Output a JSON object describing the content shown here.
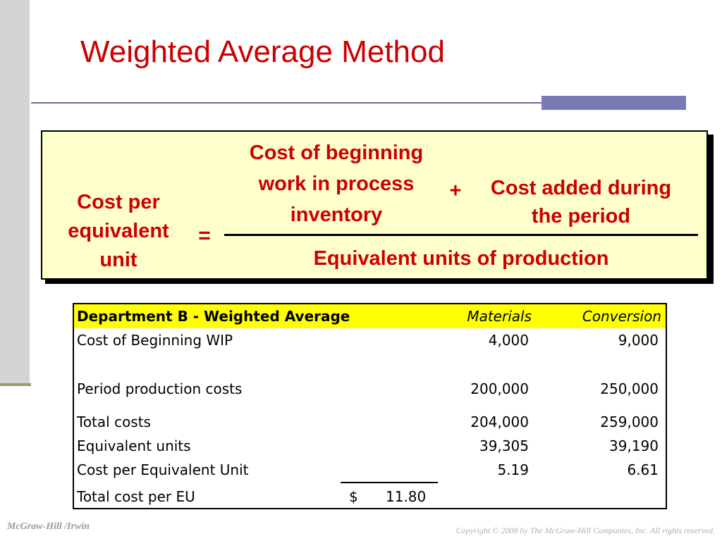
{
  "slide": {
    "title": "Weighted Average Method"
  },
  "formula": {
    "lhs": [
      "Cost per",
      "equivalent",
      "unit"
    ],
    "equals": "=",
    "beginning_inventory": [
      "Cost of beginning",
      "work in process",
      "inventory"
    ],
    "plus": "+",
    "added": [
      "Cost added during",
      "the period"
    ],
    "denominator": "Equivalent units of production",
    "box_color": "#ffffcc",
    "text_color": "#cc0000"
  },
  "table": {
    "header": {
      "label": "Department B - Weighted Average",
      "materials": "Materials",
      "conversion": "Conversion",
      "fill_color": "#ffff00"
    },
    "rows": [
      {
        "label": "Cost of Beginning WIP",
        "materials": "4,000",
        "conversion": "9,000"
      },
      {
        "label": "Period production costs",
        "materials": "200,000",
        "conversion": "250,000"
      },
      {
        "label": "Total costs",
        "materials": "204,000",
        "conversion": "259,000"
      },
      {
        "label": "Equivalent units",
        "materials": "39,305",
        "conversion": "39,190"
      },
      {
        "label": "Cost per Equivalent Unit",
        "materials": "5.19",
        "conversion": "6.61"
      }
    ],
    "total_row": {
      "label": "Total cost per EU",
      "currency": "$",
      "value": "11.80"
    }
  },
  "footer": {
    "publisher": "McGraw-Hill /Irwin",
    "copyright": "Copyright © 2008 by The McGraw-Hill Companies, Inc. All rights reserved."
  }
}
